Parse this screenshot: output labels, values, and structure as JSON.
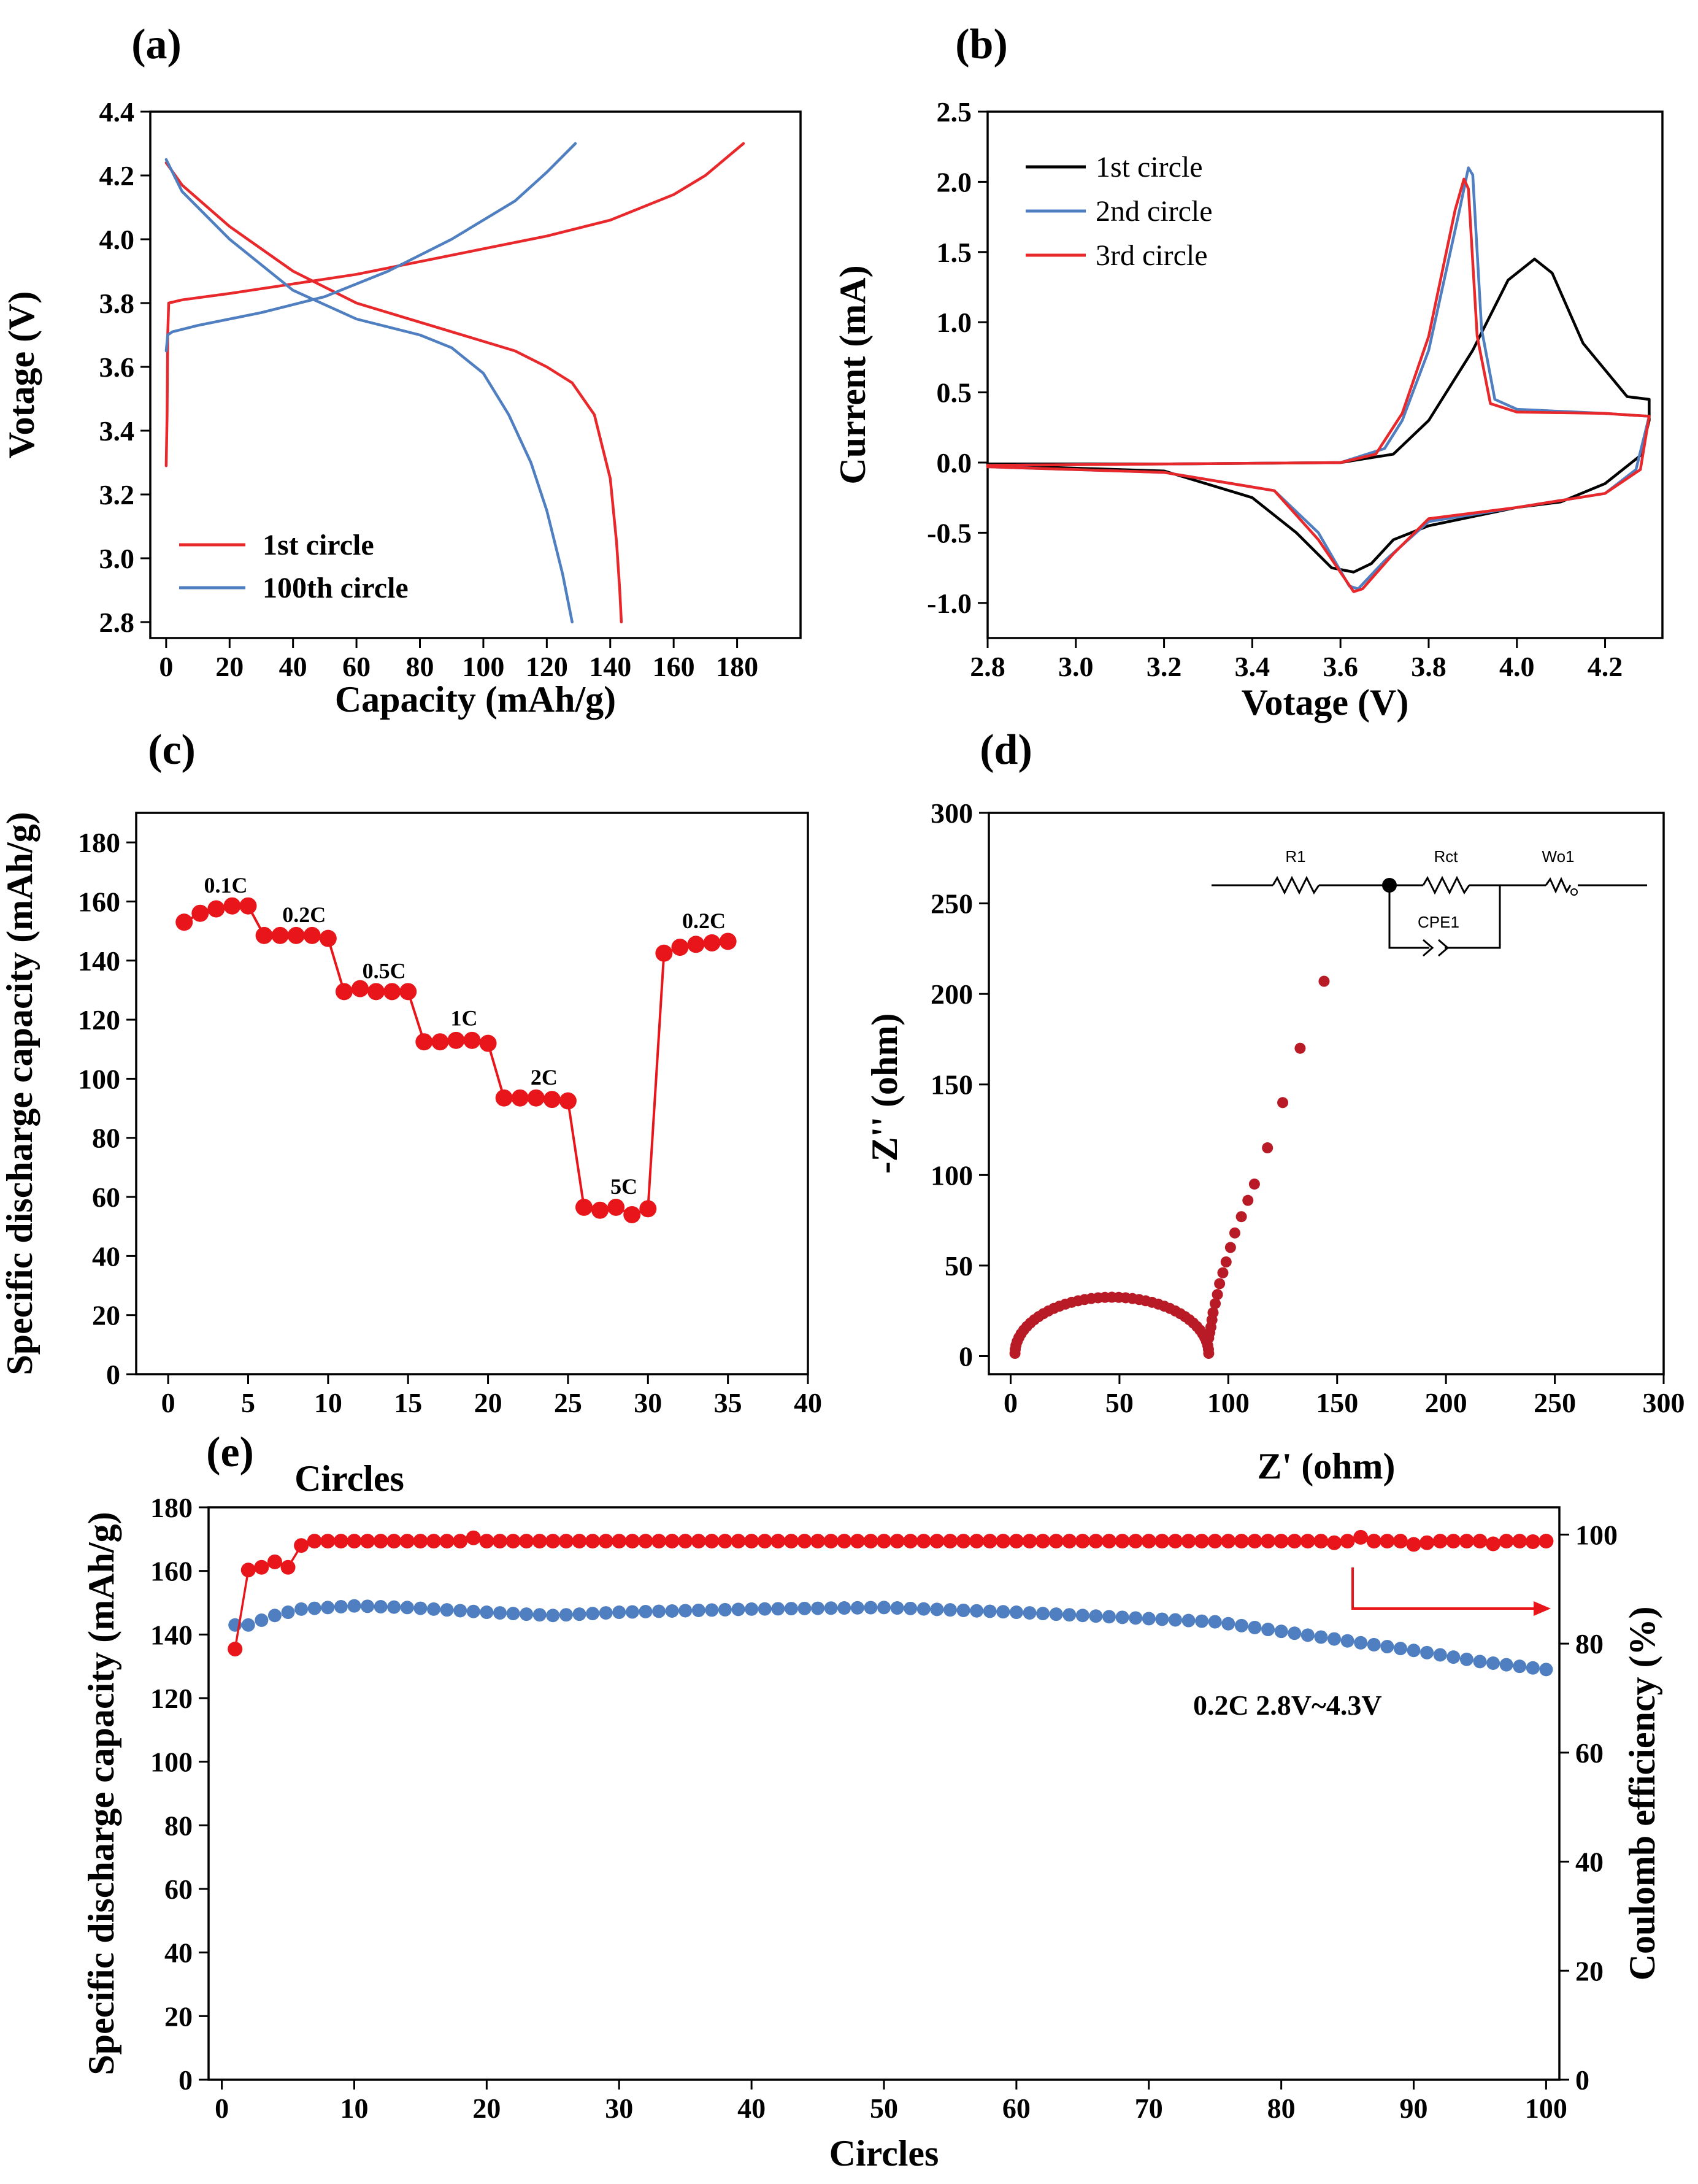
{
  "chart_data": [
    {
      "id": "a",
      "type": "line",
      "panel_label": "(a)",
      "xlabel": "Capacity (mAh/g)",
      "ylabel": "Votage (V)",
      "xlim": [
        -5,
        200
      ],
      "ylim": [
        2.75,
        4.4
      ],
      "xticks": [
        0,
        20,
        40,
        60,
        80,
        100,
        120,
        140,
        160,
        180
      ],
      "yticks": [
        2.8,
        3.0,
        3.2,
        3.4,
        3.6,
        3.8,
        4.0,
        4.2,
        4.4
      ],
      "ytick_decimals": 1,
      "legend": {
        "position": "bottom-left",
        "bold": true
      },
      "series": [
        {
          "name": "1st circle",
          "color": "#e8282b",
          "legend": true,
          "points": [
            [
              0,
              3.29
            ],
            [
              0.3,
              3.45
            ],
            [
              0.5,
              3.7
            ],
            [
              0.8,
              3.8
            ],
            [
              5,
              3.81
            ],
            [
              20,
              3.83
            ],
            [
              40,
              3.86
            ],
            [
              60,
              3.89
            ],
            [
              80,
              3.93
            ],
            [
              100,
              3.97
            ],
            [
              120,
              4.01
            ],
            [
              140,
              4.06
            ],
            [
              160,
              4.14
            ],
            [
              170,
              4.2
            ],
            [
              182,
              4.3
            ]
          ]
        },
        {
          "name": "1st circle discharge",
          "color": "#e8282b",
          "legend": false,
          "points": [
            [
              0,
              4.24
            ],
            [
              5,
              4.17
            ],
            [
              20,
              4.04
            ],
            [
              40,
              3.9
            ],
            [
              60,
              3.8
            ],
            [
              80,
              3.74
            ],
            [
              100,
              3.68
            ],
            [
              110,
              3.65
            ],
            [
              120,
              3.6
            ],
            [
              128,
              3.55
            ],
            [
              135,
              3.45
            ],
            [
              140,
              3.25
            ],
            [
              142,
              3.05
            ],
            [
              143,
              2.9
            ],
            [
              143.5,
              2.8
            ]
          ]
        },
        {
          "name": "100th circle",
          "color": "#4f7fc0",
          "legend": true,
          "points": [
            [
              0,
              3.65
            ],
            [
              0.5,
              3.7
            ],
            [
              2,
              3.71
            ],
            [
              10,
              3.73
            ],
            [
              30,
              3.77
            ],
            [
              50,
              3.82
            ],
            [
              70,
              3.9
            ],
            [
              90,
              4.0
            ],
            [
              110,
              4.12
            ],
            [
              120,
              4.21
            ],
            [
              129,
              4.3
            ]
          ]
        },
        {
          "name": "100th circle discharge",
          "color": "#4f7fc0",
          "legend": false,
          "points": [
            [
              0,
              4.25
            ],
            [
              5,
              4.15
            ],
            [
              20,
              4.0
            ],
            [
              40,
              3.84
            ],
            [
              60,
              3.75
            ],
            [
              80,
              3.7
            ],
            [
              90,
              3.66
            ],
            [
              100,
              3.58
            ],
            [
              108,
              3.45
            ],
            [
              115,
              3.3
            ],
            [
              120,
              3.15
            ],
            [
              125,
              2.95
            ],
            [
              128,
              2.8
            ]
          ]
        }
      ]
    },
    {
      "id": "b",
      "type": "line",
      "panel_label": "(b)",
      "xlabel": "Votage (V)",
      "ylabel": "Current (mA)",
      "xlim": [
        2.8,
        4.33
      ],
      "ylim": [
        -1.25,
        2.5
      ],
      "xticks": [
        2.8,
        3.0,
        3.2,
        3.4,
        3.6,
        3.8,
        4.0,
        4.2
      ],
      "yticks": [
        -1.0,
        -0.5,
        0.0,
        0.5,
        1.0,
        1.5,
        2.0,
        2.5
      ],
      "xtick_decimals": 1,
      "ytick_decimals": 1,
      "legend": {
        "position": "top-left",
        "bold": false
      },
      "series": [
        {
          "name": "1st circle",
          "color": "#000000",
          "legend": true,
          "points": [
            [
              2.8,
              -0.02
            ],
            [
              3.2,
              -0.06
            ],
            [
              3.4,
              -0.25
            ],
            [
              3.5,
              -0.5
            ],
            [
              3.58,
              -0.75
            ],
            [
              3.63,
              -0.78
            ],
            [
              3.67,
              -0.72
            ],
            [
              3.72,
              -0.55
            ],
            [
              3.8,
              -0.45
            ],
            [
              4.0,
              -0.32
            ],
            [
              4.1,
              -0.28
            ],
            [
              4.2,
              -0.15
            ],
            [
              4.28,
              0.05
            ],
            [
              4.3,
              0.3
            ],
            [
              4.3,
              0.45
            ],
            [
              4.25,
              0.47
            ],
            [
              4.15,
              0.85
            ],
            [
              4.08,
              1.35
            ],
            [
              4.04,
              1.45
            ],
            [
              3.98,
              1.3
            ],
            [
              3.9,
              0.8
            ],
            [
              3.8,
              0.3
            ],
            [
              3.72,
              0.06
            ],
            [
              3.6,
              0.0
            ],
            [
              3.2,
              -0.01
            ],
            [
              2.8,
              -0.01
            ]
          ]
        },
        {
          "name": "2nd circle",
          "color": "#4f7fc0",
          "legend": true,
          "points": [
            [
              2.8,
              -0.03
            ],
            [
              3.2,
              -0.07
            ],
            [
              3.45,
              -0.2
            ],
            [
              3.55,
              -0.5
            ],
            [
              3.62,
              -0.88
            ],
            [
              3.64,
              -0.9
            ],
            [
              3.7,
              -0.7
            ],
            [
              3.8,
              -0.42
            ],
            [
              4.0,
              -0.32
            ],
            [
              4.2,
              -0.22
            ],
            [
              4.27,
              -0.05
            ],
            [
              4.3,
              0.33
            ],
            [
              4.2,
              0.35
            ],
            [
              4.0,
              0.38
            ],
            [
              3.95,
              0.45
            ],
            [
              3.92,
              0.95
            ],
            [
              3.9,
              2.05
            ],
            [
              3.89,
              2.1
            ],
            [
              3.87,
              1.8
            ],
            [
              3.8,
              0.8
            ],
            [
              3.74,
              0.3
            ],
            [
              3.7,
              0.1
            ],
            [
              3.6,
              0.0
            ],
            [
              2.8,
              -0.02
            ]
          ]
        },
        {
          "name": "3rd circle",
          "color": "#e8282b",
          "legend": true,
          "points": [
            [
              2.8,
              -0.03
            ],
            [
              3.2,
              -0.07
            ],
            [
              3.45,
              -0.2
            ],
            [
              3.55,
              -0.55
            ],
            [
              3.63,
              -0.92
            ],
            [
              3.65,
              -0.9
            ],
            [
              3.72,
              -0.65
            ],
            [
              3.8,
              -0.4
            ],
            [
              4.0,
              -0.32
            ],
            [
              4.2,
              -0.22
            ],
            [
              4.28,
              -0.05
            ],
            [
              4.3,
              0.33
            ],
            [
              4.2,
              0.35
            ],
            [
              4.0,
              0.36
            ],
            [
              3.94,
              0.42
            ],
            [
              3.91,
              0.9
            ],
            [
              3.89,
              1.95
            ],
            [
              3.88,
              2.02
            ],
            [
              3.86,
              1.8
            ],
            [
              3.8,
              0.9
            ],
            [
              3.74,
              0.35
            ],
            [
              3.68,
              0.06
            ],
            [
              3.6,
              0.0
            ],
            [
              2.8,
              -0.02
            ]
          ]
        }
      ]
    },
    {
      "id": "c",
      "type": "scatter",
      "panel_label": "(c)",
      "xlabel": "Circles",
      "ylabel": "Specific discharge capacity (mAh/g)",
      "xlim": [
        -2,
        40
      ],
      "ylim": [
        0,
        190
      ],
      "xticks": [
        0,
        5,
        10,
        15,
        20,
        25,
        30,
        35,
        40
      ],
      "yticks": [
        0,
        20,
        40,
        60,
        80,
        100,
        120,
        140,
        160,
        180
      ],
      "color": "#e8161b",
      "connect": true,
      "x": [
        1,
        2,
        3,
        4,
        5,
        6,
        7,
        8,
        9,
        10,
        11,
        12,
        13,
        14,
        15,
        16,
        17,
        18,
        19,
        20,
        21,
        22,
        23,
        24,
        25,
        26,
        27,
        28,
        29,
        30,
        31,
        32,
        33,
        34,
        35
      ],
      "y": [
        153,
        156,
        157.5,
        158.5,
        158.5,
        148.5,
        148.5,
        148.5,
        148.5,
        147.5,
        129.5,
        130.5,
        129.5,
        129.5,
        129.5,
        112.5,
        112.5,
        113,
        113,
        112,
        93.5,
        93.5,
        93.5,
        93,
        92.5,
        56.5,
        55.5,
        56.5,
        54,
        56,
        142.5,
        144.5,
        145.5,
        146,
        146.5
      ],
      "annotations": [
        {
          "text": "0.1C",
          "x": 3.6,
          "y": 163
        },
        {
          "text": "0.2C",
          "x": 8.5,
          "y": 153
        },
        {
          "text": "0.5C",
          "x": 13.5,
          "y": 134
        },
        {
          "text": "1C",
          "x": 18.5,
          "y": 118
        },
        {
          "text": "2C",
          "x": 23.5,
          "y": 98
        },
        {
          "text": "5C",
          "x": 28.5,
          "y": 61
        },
        {
          "text": "0.2C",
          "x": 33.5,
          "y": 151
        }
      ]
    },
    {
      "id": "d",
      "type": "scatter",
      "panel_label": "(d)",
      "xlabel": "Z' (ohm)",
      "ylabel": "-Z'' (ohm)",
      "xlim": [
        -10,
        300
      ],
      "ylim": [
        -10,
        300
      ],
      "xticks": [
        0,
        50,
        100,
        150,
        200,
        250,
        300
      ],
      "yticks": [
        0,
        50,
        100,
        150,
        200,
        250,
        300
      ],
      "color": "#b81b26",
      "semicircle": {
        "x_start": 2,
        "x_end": 91,
        "peak": 31
      },
      "tail": [
        [
          91,
          10
        ],
        [
          91.5,
          13
        ],
        [
          92,
          16
        ],
        [
          92.5,
          20
        ],
        [
          93,
          24
        ],
        [
          94,
          29
        ],
        [
          95,
          34
        ],
        [
          96,
          40
        ],
        [
          97.5,
          46
        ],
        [
          99,
          52
        ],
        [
          101,
          60
        ],
        [
          103,
          68
        ],
        [
          106,
          77
        ],
        [
          109,
          86
        ],
        [
          112,
          95
        ],
        [
          118,
          115
        ],
        [
          125,
          140
        ],
        [
          133,
          170
        ],
        [
          144,
          207
        ]
      ],
      "circuit": {
        "labels": [
          "R1",
          "Rct",
          "Wo1",
          "CPE1"
        ]
      }
    },
    {
      "id": "e",
      "type": "scatter",
      "panel_label": "(e)",
      "xlabel": "Circles",
      "ylabel": "Specific discharge capacity (mAh/g)",
      "y2label": "Coulomb efficiency (%)",
      "xlim": [
        -1,
        101
      ],
      "ylim": [
        0,
        180
      ],
      "y2lim": [
        0,
        105
      ],
      "xticks": [
        0,
        10,
        20,
        30,
        40,
        50,
        60,
        70,
        80,
        90,
        100
      ],
      "yticks": [
        0,
        20,
        40,
        60,
        80,
        100,
        120,
        140,
        160,
        180
      ],
      "y2ticks": [
        0,
        20,
        40,
        60,
        80,
        100
      ],
      "annotation": "0.2C 2.8V~4.3V",
      "capacity": {
        "name": "Specific discharge capacity",
        "color": "#4f7fc0",
        "anchors": [
          [
            1,
            143
          ],
          [
            2,
            143
          ],
          [
            4,
            146
          ],
          [
            6,
            148
          ],
          [
            10,
            149
          ],
          [
            14,
            148.5
          ],
          [
            20,
            147
          ],
          [
            25,
            146
          ],
          [
            30,
            147
          ],
          [
            40,
            148
          ],
          [
            50,
            148.5
          ],
          [
            60,
            147
          ],
          [
            65,
            146
          ],
          [
            70,
            145
          ],
          [
            75,
            144
          ],
          [
            80,
            141
          ],
          [
            85,
            138
          ],
          [
            90,
            135
          ],
          [
            95,
            131.5
          ],
          [
            100,
            129
          ]
        ]
      },
      "efficiency": {
        "name": "Coulomb efficiency",
        "color": "#e8161b",
        "first_points": [
          [
            1,
            79
          ],
          [
            2,
            93.5
          ],
          [
            3,
            94
          ],
          [
            4,
            95
          ],
          [
            5,
            94
          ],
          [
            6,
            98
          ]
        ],
        "plateau": 98.8,
        "wobble": [
          [
            19,
            99.4
          ],
          [
            84,
            98.5
          ],
          [
            86,
            99.5
          ],
          [
            90,
            98.2
          ],
          [
            91,
            98.5
          ],
          [
            96,
            98.3
          ],
          [
            99,
            98.7
          ]
        ]
      }
    }
  ]
}
